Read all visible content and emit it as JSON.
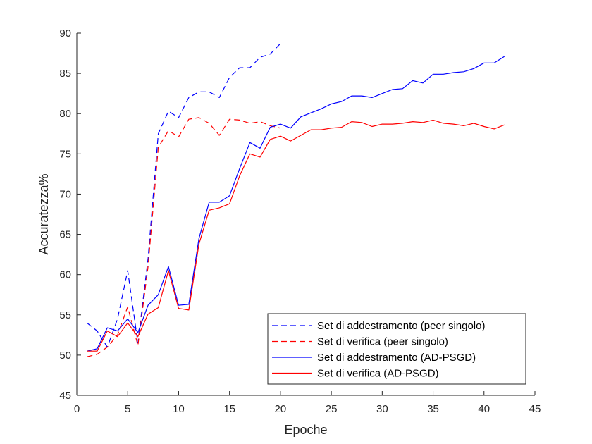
{
  "chart_data": {
    "type": "line",
    "xlabel": "Epoche",
    "ylabel": "Accuratezza%",
    "xlim": [
      0,
      45
    ],
    "ylim": [
      45,
      90
    ],
    "xticks": [
      "0",
      "5",
      "10",
      "15",
      "20",
      "25",
      "30",
      "35",
      "40",
      "45"
    ],
    "yticks": [
      "45",
      "50",
      "55",
      "60",
      "65",
      "70",
      "75",
      "80",
      "85",
      "90"
    ],
    "grid": false,
    "legend_position": "bottom-right",
    "series": [
      {
        "name": "Set di addestramento (peer singolo)",
        "color": "#0000ff",
        "dash": "dashed",
        "x": [
          1,
          2,
          3,
          4,
          5,
          6,
          7,
          8,
          9,
          10,
          11,
          12,
          13,
          14,
          15,
          16,
          17,
          18,
          19,
          20
        ],
        "y": [
          54.0,
          53.0,
          51.0,
          54.5,
          60.5,
          51.5,
          62.0,
          77.5,
          80.3,
          79.5,
          82.0,
          82.7,
          82.7,
          82.0,
          84.5,
          85.7,
          85.7,
          87.0,
          87.4,
          88.7
        ]
      },
      {
        "name": "Set di verifica (peer singolo)",
        "color": "#ff0000",
        "dash": "dashed",
        "x": [
          1,
          2,
          3,
          4,
          5,
          6,
          7,
          8,
          9,
          10,
          11,
          12,
          13,
          14,
          15,
          16,
          17,
          18,
          19,
          20
        ],
        "y": [
          49.8,
          50.1,
          51.0,
          52.5,
          56.0,
          51.2,
          61.0,
          75.8,
          77.9,
          77.1,
          79.3,
          79.5,
          78.8,
          77.3,
          79.3,
          79.2,
          78.8,
          79.0,
          78.5,
          78.2
        ]
      },
      {
        "name": "Set di addestramento (AD-PSGD)",
        "color": "#0000ff",
        "dash": "solid",
        "x": [
          1,
          2,
          3,
          4,
          5,
          6,
          7,
          8,
          9,
          10,
          11,
          12,
          13,
          14,
          15,
          16,
          17,
          18,
          19,
          20,
          21,
          22,
          23,
          24,
          25,
          26,
          27,
          28,
          29,
          30,
          31,
          32,
          33,
          34,
          35,
          36,
          37,
          38,
          39,
          40,
          41,
          42
        ],
        "y": [
          50.5,
          50.8,
          53.4,
          53.0,
          54.5,
          52.8,
          56.2,
          57.5,
          61.0,
          56.2,
          56.3,
          64.5,
          69.0,
          69.0,
          69.8,
          73.2,
          76.4,
          75.7,
          78.3,
          78.7,
          78.2,
          79.6,
          80.1,
          80.6,
          81.2,
          81.5,
          82.2,
          82.2,
          82.0,
          82.5,
          83.0,
          83.1,
          84.1,
          83.8,
          84.9,
          84.9,
          85.1,
          85.2,
          85.6,
          86.3,
          86.3,
          87.1
        ]
      },
      {
        "name": "Set di verifica (AD-PSGD)",
        "color": "#ff0000",
        "dash": "solid",
        "x": [
          1,
          2,
          3,
          4,
          5,
          6,
          7,
          8,
          9,
          10,
          11,
          12,
          13,
          14,
          15,
          16,
          17,
          18,
          19,
          20,
          21,
          22,
          23,
          24,
          25,
          26,
          27,
          28,
          29,
          30,
          31,
          32,
          33,
          34,
          35,
          36,
          37,
          38,
          39,
          40,
          41,
          42
        ],
        "y": [
          50.5,
          50.5,
          53.0,
          52.3,
          54.0,
          52.3,
          55.1,
          55.9,
          60.5,
          55.8,
          55.6,
          63.8,
          68.0,
          68.3,
          68.8,
          72.3,
          75.0,
          74.6,
          76.8,
          77.2,
          76.6,
          77.3,
          78.0,
          78.0,
          78.2,
          78.3,
          79.0,
          78.9,
          78.4,
          78.7,
          78.7,
          78.8,
          79.0,
          78.9,
          79.2,
          78.8,
          78.7,
          78.5,
          78.8,
          78.4,
          78.1,
          78.6
        ]
      }
    ]
  }
}
